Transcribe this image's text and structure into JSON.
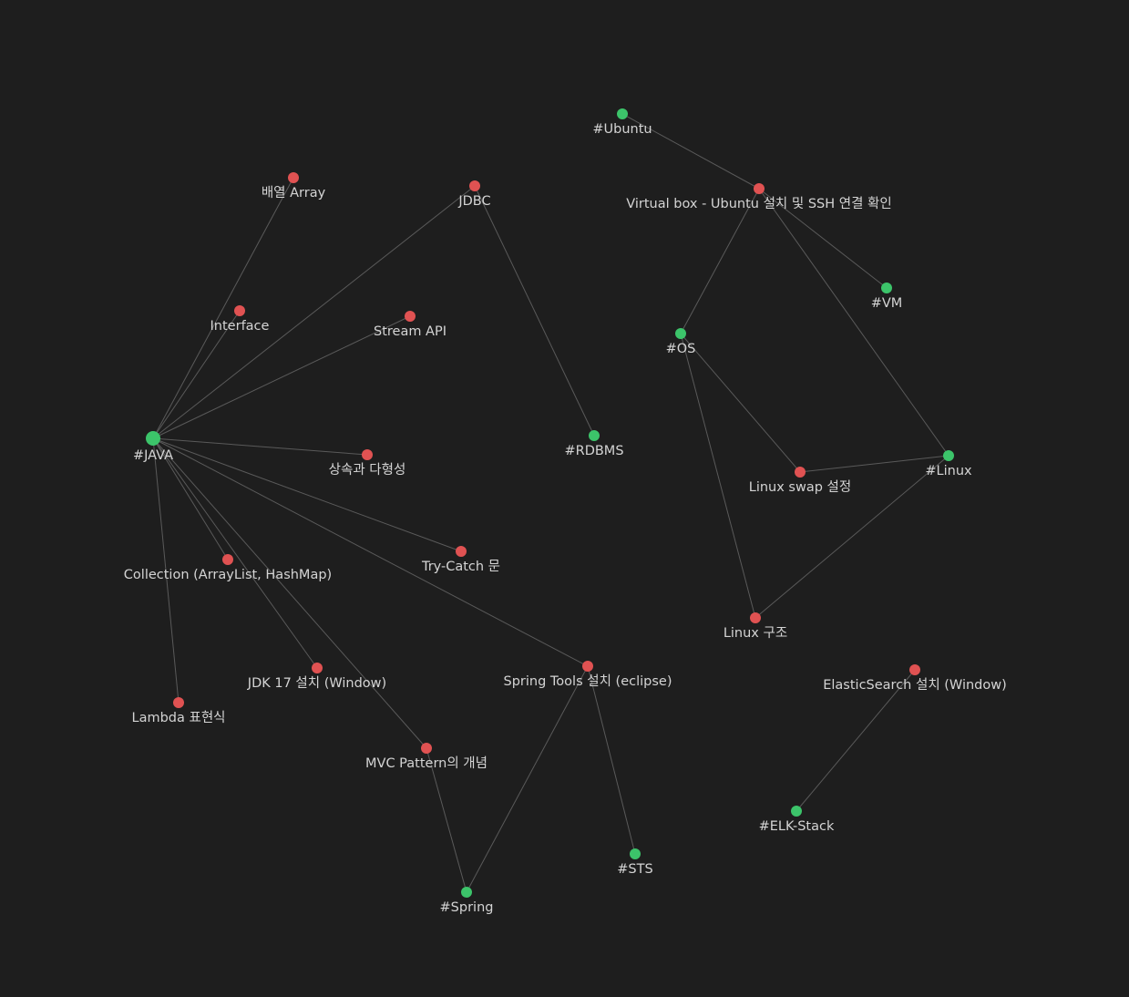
{
  "graph": {
    "colors": {
      "background": "#1e1e1e",
      "note_node": "#e05252",
      "tag_node": "#3cc46a",
      "edge": "#5a5a5a",
      "label": "#d4d4d4"
    },
    "nodes": [
      {
        "id": "java",
        "label": "#JAVA",
        "kind": "tag",
        "emphasis": "large"
      },
      {
        "id": "array",
        "label": "배열 Array",
        "kind": "note"
      },
      {
        "id": "jdbc",
        "label": "JDBC",
        "kind": "note"
      },
      {
        "id": "interface",
        "label": "Interface",
        "kind": "note"
      },
      {
        "id": "stream",
        "label": "Stream API",
        "kind": "note"
      },
      {
        "id": "inherit",
        "label": "상속과 다형성",
        "kind": "note"
      },
      {
        "id": "collection",
        "label": "Collection (ArrayList, HashMap)",
        "kind": "note"
      },
      {
        "id": "trycatch",
        "label": "Try-Catch 문",
        "kind": "note"
      },
      {
        "id": "jdk17",
        "label": "JDK 17 설치 (Window)",
        "kind": "note"
      },
      {
        "id": "lambda",
        "label": "Lambda 표현식",
        "kind": "note"
      },
      {
        "id": "mvc",
        "label": "MVC Pattern의 개념",
        "kind": "note"
      },
      {
        "id": "springtools",
        "label": "Spring Tools 설치 (eclipse)",
        "kind": "note"
      },
      {
        "id": "spring",
        "label": "#Spring",
        "kind": "tag"
      },
      {
        "id": "sts",
        "label": "#STS",
        "kind": "tag"
      },
      {
        "id": "rdbms",
        "label": "#RDBMS",
        "kind": "tag"
      },
      {
        "id": "ubuntu",
        "label": "#Ubuntu",
        "kind": "tag"
      },
      {
        "id": "vbox",
        "label": "Virtual box - Ubuntu 설치 및 SSH 연결 확인",
        "kind": "note"
      },
      {
        "id": "vm",
        "label": "#VM",
        "kind": "tag"
      },
      {
        "id": "os",
        "label": "#OS",
        "kind": "tag"
      },
      {
        "id": "linux",
        "label": "#Linux",
        "kind": "tag"
      },
      {
        "id": "swap",
        "label": "Linux swap 설정",
        "kind": "note"
      },
      {
        "id": "linuxstruct",
        "label": "Linux 구조",
        "kind": "note"
      },
      {
        "id": "elastic",
        "label": "ElasticSearch 설치 (Window)",
        "kind": "note"
      },
      {
        "id": "elk",
        "label": "#ELK-Stack",
        "kind": "tag"
      }
    ],
    "edges": [
      [
        "java",
        "array"
      ],
      [
        "java",
        "jdbc"
      ],
      [
        "java",
        "interface"
      ],
      [
        "java",
        "stream"
      ],
      [
        "java",
        "inherit"
      ],
      [
        "java",
        "collection"
      ],
      [
        "java",
        "trycatch"
      ],
      [
        "java",
        "jdk17"
      ],
      [
        "java",
        "lambda"
      ],
      [
        "java",
        "mvc"
      ],
      [
        "java",
        "springtools"
      ],
      [
        "jdbc",
        "rdbms"
      ],
      [
        "springtools",
        "spring"
      ],
      [
        "springtools",
        "sts"
      ],
      [
        "mvc",
        "spring"
      ],
      [
        "ubuntu",
        "vbox"
      ],
      [
        "vbox",
        "vm"
      ],
      [
        "vbox",
        "os"
      ],
      [
        "vbox",
        "linux"
      ],
      [
        "os",
        "swap"
      ],
      [
        "os",
        "linuxstruct"
      ],
      [
        "swap",
        "linux"
      ],
      [
        "linuxstruct",
        "linux"
      ],
      [
        "elastic",
        "elk"
      ]
    ]
  }
}
